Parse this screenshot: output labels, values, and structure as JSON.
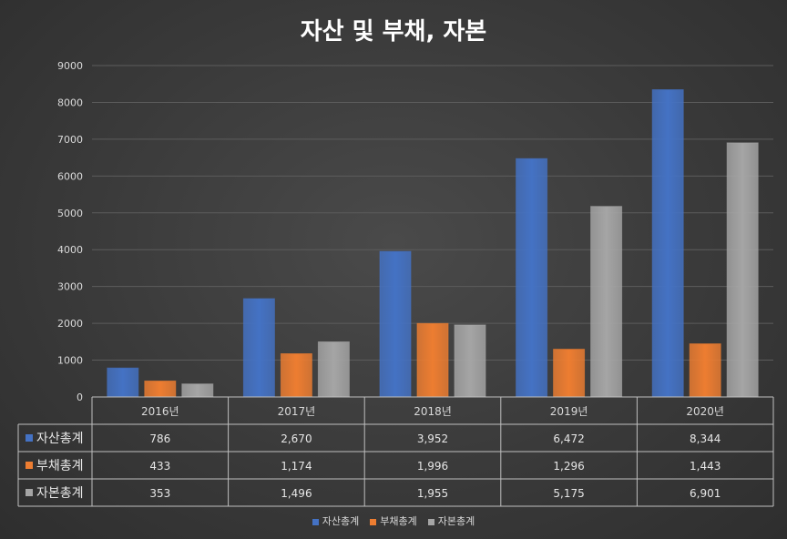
{
  "title": "자산 및 부채, 자본",
  "chart_data": {
    "type": "bar",
    "title": "자산 및 부채, 자본",
    "categories": [
      "2016년",
      "2017년",
      "2018년",
      "2019년",
      "2020년"
    ],
    "series": [
      {
        "name": "자산총계",
        "color": "#4472c4",
        "values": [
          786,
          2670,
          3952,
          6472,
          8344
        ],
        "labels": [
          "786",
          "2,670",
          "3,952",
          "6,472",
          "8,344"
        ]
      },
      {
        "name": "부채총계",
        "color": "#ed7d31",
        "values": [
          433,
          1174,
          1996,
          1296,
          1443
        ],
        "labels": [
          "433",
          "1,174",
          "1,996",
          "1,296",
          "1,443"
        ]
      },
      {
        "name": "자본총계",
        "color": "#a5a5a5",
        "values": [
          353,
          1496,
          1955,
          5175,
          6901
        ],
        "labels": [
          "353",
          "1,496",
          "1,955",
          "5,175",
          "6,901"
        ]
      }
    ],
    "yticks": [
      "0",
      "1000",
      "2000",
      "3000",
      "4000",
      "5000",
      "6000",
      "7000",
      "8000",
      "9000"
    ],
    "ylim": [
      0,
      9000
    ],
    "grid": true,
    "legend_position": "bottom",
    "data_table": true
  }
}
